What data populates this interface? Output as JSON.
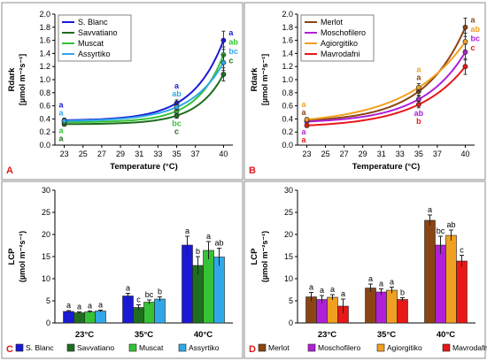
{
  "chart_data": [
    {
      "id": "A",
      "type": "line",
      "panel_letter": "A",
      "xlabel": "Temperature (°C)",
      "ylabel_main": "Rdark",
      "ylabel_unit": "[µmol m⁻²s⁻¹]",
      "xlim": [
        22,
        41
      ],
      "ylim": [
        0,
        2.0
      ],
      "yticks": [
        0.0,
        0.2,
        0.4,
        0.6,
        0.8,
        1.0,
        1.2,
        1.4,
        1.6,
        1.8,
        2.0
      ],
      "ytick_labels": [
        "0.0",
        "0.2",
        "0.4",
        "0.6",
        "0.8",
        "1.0",
        "1.2",
        "1.4",
        "1.6",
        "1.8",
        "2.0"
      ],
      "xticks": [
        23,
        25,
        27,
        29,
        31,
        33,
        35,
        37,
        40
      ],
      "xtick_labels": [
        "23",
        "25",
        "27",
        "29",
        "31",
        "33",
        "35",
        "37",
        "40"
      ],
      "legend_position": "top-left",
      "series": [
        {
          "name": "S. Blanc",
          "color": "#1a1ad6",
          "x": [
            23,
            35,
            40
          ],
          "y": [
            0.38,
            0.64,
            1.6
          ],
          "err": [
            0.03,
            0.05,
            0.14
          ],
          "letters": [
            "a",
            "a",
            "a"
          ]
        },
        {
          "name": "Savvatiano",
          "color": "#1f6e1f",
          "x": [
            23,
            35,
            40
          ],
          "y": [
            0.32,
            0.45,
            1.08
          ],
          "err": [
            0.03,
            0.04,
            0.1
          ],
          "letters": [
            "a",
            "c",
            "c"
          ]
        },
        {
          "name": "Muscat",
          "color": "#35c235",
          "x": [
            23,
            35,
            40
          ],
          "y": [
            0.35,
            0.52,
            1.38
          ],
          "err": [
            0.03,
            0.04,
            0.12
          ],
          "letters": [
            "a",
            "bc",
            "ab"
          ]
        },
        {
          "name": "Assyrtiko",
          "color": "#30a8e8",
          "x": [
            23,
            35,
            40
          ],
          "y": [
            0.37,
            0.58,
            1.26
          ],
          "err": [
            0.03,
            0.05,
            0.12
          ],
          "letters": [
            "a",
            "ab",
            "bc"
          ]
        }
      ]
    },
    {
      "id": "B",
      "type": "line",
      "panel_letter": "B",
      "xlabel": "Temperature (°C)",
      "ylabel_main": "Rdark",
      "ylabel_unit": "[µmol m⁻²s⁻¹]",
      "xlim": [
        22,
        41
      ],
      "ylim": [
        0,
        2.0
      ],
      "yticks": [
        0.0,
        0.2,
        0.4,
        0.6,
        0.8,
        1.0,
        1.2,
        1.4,
        1.6,
        1.8,
        2.0
      ],
      "ytick_labels": [
        "0.0",
        "0.2",
        "0.4",
        "0.6",
        "0.8",
        "1.0",
        "1.2",
        "1.4",
        "1.6",
        "1.8",
        "2.0"
      ],
      "xticks": [
        23,
        25,
        27,
        29,
        31,
        33,
        35,
        37,
        40
      ],
      "xtick_labels": [
        "23",
        "25",
        "27",
        "29",
        "31",
        "33",
        "35",
        "37",
        "40"
      ],
      "legend_position": "top-left",
      "series": [
        {
          "name": "Merlot",
          "color": "#8b4513",
          "x": [
            23,
            35,
            40
          ],
          "y": [
            0.38,
            0.82,
            1.8
          ],
          "err": [
            0.03,
            0.06,
            0.14
          ],
          "letters": [
            "a",
            "a",
            "a"
          ]
        },
        {
          "name": "Moschofilero",
          "color": "#b020d8",
          "x": [
            23,
            35,
            40
          ],
          "y": [
            0.36,
            0.7,
            1.42
          ],
          "err": [
            0.03,
            0.05,
            0.12
          ],
          "letters": [
            "a",
            "ab",
            "bc"
          ]
        },
        {
          "name": "Agiorgitiko",
          "color": "#f0a020",
          "x": [
            23,
            35,
            40
          ],
          "y": [
            0.39,
            0.88,
            1.58
          ],
          "err": [
            0.03,
            0.06,
            0.13
          ],
          "letters": [
            "a",
            "a",
            "ab"
          ]
        },
        {
          "name": "Mavrodafni",
          "color": "#e81818",
          "x": [
            23,
            35,
            40
          ],
          "y": [
            0.3,
            0.62,
            1.2
          ],
          "err": [
            0.03,
            0.05,
            0.12
          ],
          "letters": [
            "a",
            "b",
            "c"
          ]
        }
      ]
    },
    {
      "id": "C",
      "type": "bar",
      "panel_letter": "C",
      "ylabel_main": "LCP",
      "ylabel_unit": "(µmol m⁻²s⁻¹)",
      "ylim": [
        0,
        30
      ],
      "yticks": [
        0,
        5,
        10,
        15,
        20,
        25,
        30
      ],
      "ytick_labels": [
        "0",
        "5",
        "10",
        "15",
        "20",
        "25",
        "30"
      ],
      "categories": [
        "23°C",
        "35°C",
        "40°C"
      ],
      "legend_position": "bottom",
      "series": [
        {
          "name": "S. Blanc",
          "color": "#1a1ad6",
          "values": [
            2.6,
            6.1,
            17.6
          ],
          "err": [
            0.2,
            0.6,
            2.0
          ],
          "letters": [
            "a",
            "a",
            "a"
          ]
        },
        {
          "name": "Savvatiano",
          "color": "#1f6e1f",
          "values": [
            2.3,
            3.5,
            13.0
          ],
          "err": [
            0.2,
            0.6,
            2.0
          ],
          "letters": [
            "a",
            "c",
            "b"
          ]
        },
        {
          "name": "Muscat",
          "color": "#35c235",
          "values": [
            2.5,
            4.7,
            16.4
          ],
          "err": [
            0.2,
            0.5,
            2.0
          ],
          "letters": [
            "a",
            "bc",
            "a"
          ]
        },
        {
          "name": "Assyrtiko",
          "color": "#30a8e8",
          "values": [
            2.7,
            5.4,
            14.9
          ],
          "err": [
            0.2,
            0.5,
            2.0
          ],
          "letters": [
            "a",
            "b",
            "ab"
          ]
        }
      ]
    },
    {
      "id": "D",
      "type": "bar",
      "panel_letter": "D",
      "ylabel_main": "LCP",
      "ylabel_unit": "(µmol m⁻²s⁻¹)",
      "ylim": [
        0,
        30
      ],
      "yticks": [
        0,
        5,
        10,
        15,
        20,
        25,
        30
      ],
      "ytick_labels": [
        "0",
        "5",
        "10",
        "15",
        "20",
        "25",
        "30"
      ],
      "categories": [
        "23°C",
        "35°C",
        "40°C"
      ],
      "legend_position": "bottom",
      "series": [
        {
          "name": "Merlot",
          "color": "#8b4513",
          "values": [
            5.9,
            7.9,
            23.2
          ],
          "err": [
            1.0,
            0.9,
            1.2
          ],
          "letters": [
            "a",
            "a",
            "a"
          ]
        },
        {
          "name": "Moschofilero",
          "color": "#b020d8",
          "values": [
            5.3,
            7.0,
            17.6
          ],
          "err": [
            0.9,
            0.7,
            2.0
          ],
          "letters": [
            "a",
            "a",
            "bc"
          ]
        },
        {
          "name": "Agiorgitiko",
          "color": "#f0a020",
          "values": [
            5.8,
            7.4,
            19.8
          ],
          "err": [
            0.6,
            0.7,
            1.2
          ],
          "letters": [
            "a",
            "a",
            "ab"
          ]
        },
        {
          "name": "Mavrodafni",
          "color": "#e81818",
          "values": [
            3.8,
            5.3,
            14.0
          ],
          "err": [
            1.6,
            0.4,
            1.3
          ],
          "letters": [
            "a",
            "b",
            "c"
          ]
        }
      ]
    }
  ]
}
